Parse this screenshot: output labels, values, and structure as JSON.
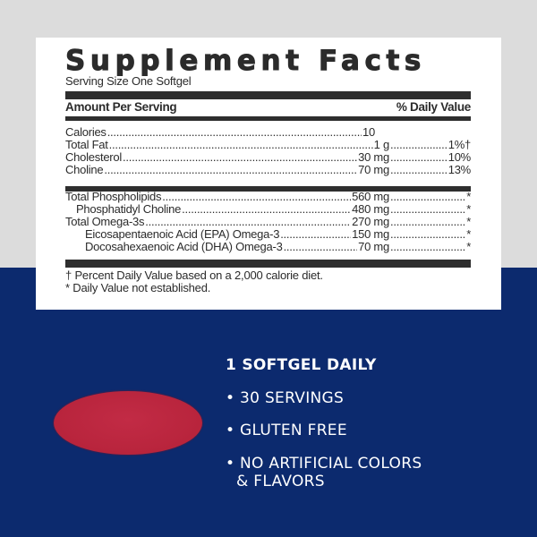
{
  "colors": {
    "top_background": "#dcdcdc",
    "bottom_background": "#0c2a6e",
    "label_background": "#ffffff",
    "softgel": "#c22b45"
  },
  "label": {
    "title": "Supplement Facts",
    "serving_size": "Serving Size One Softgel",
    "amount_header": "Amount Per Serving",
    "dv_header": "% Daily Value",
    "group1": [
      {
        "name": "Calories",
        "amount": "10",
        "dv": ""
      },
      {
        "name": "Total Fat",
        "amount": "1 g",
        "dv": "1%†"
      },
      {
        "name": "Cholesterol",
        "amount": "30 mg",
        "dv": "10%"
      },
      {
        "name": "Choline",
        "amount": "70 mg",
        "dv": "13%"
      }
    ],
    "group2": [
      {
        "name": "Total Phospholipids",
        "amount": "560 mg",
        "dv": "*"
      },
      {
        "name": "Phosphatidyl Choline",
        "amount": "480 mg",
        "dv": "*"
      },
      {
        "name": "Total Omega-3s",
        "amount": "270 mg",
        "dv": "*"
      },
      {
        "name": "Eicosapentaenoic Acid (EPA) Omega-3",
        "amount": "150 mg",
        "dv": "*"
      },
      {
        "name": "Docosahexaenoic Acid (DHA) Omega-3",
        "amount": "70 mg",
        "dv": "*"
      }
    ],
    "footnote1": "† Percent Daily Value based on a 2,000 calorie diet.",
    "footnote2": "* Daily Value not established."
  },
  "features": {
    "headline": "1 SOFTGEL DAILY",
    "items": [
      "• 30 SERVINGS",
      "• GLUTEN FREE",
      "• NO ARTIFICIAL COLORS",
      "& FLAVORS"
    ]
  }
}
